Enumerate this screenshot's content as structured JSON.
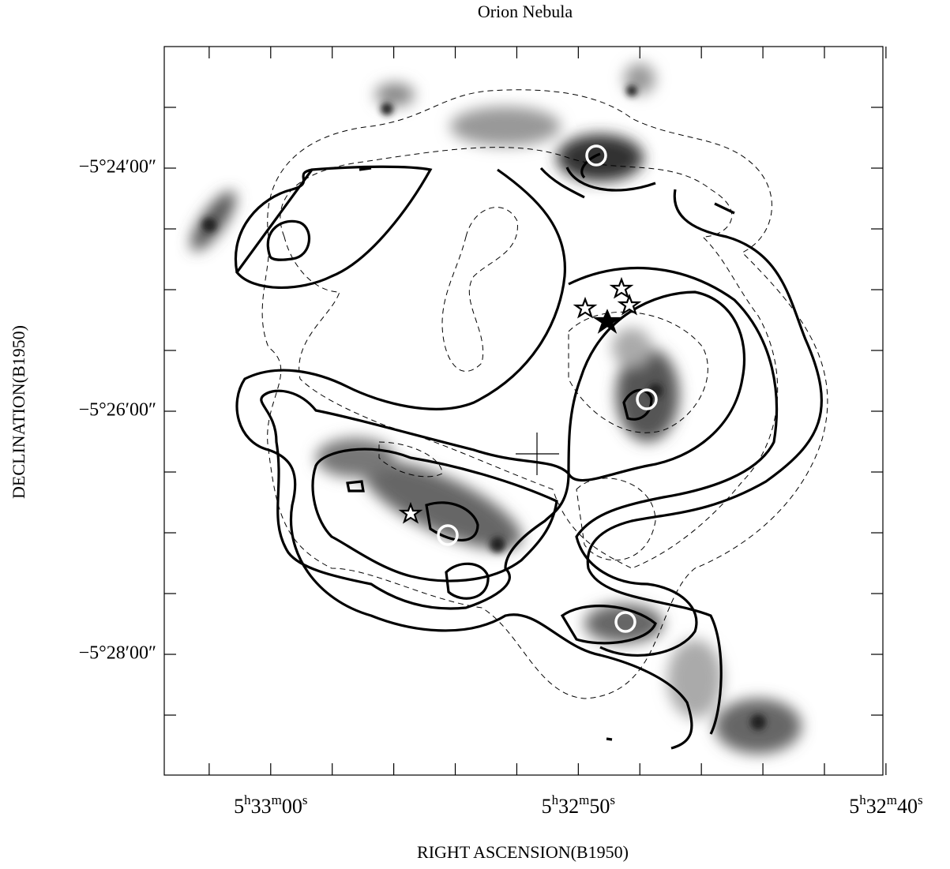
{
  "chart_data": {
    "type": "image-contour",
    "title": "Orion Nebula",
    "xlabel": "RIGHT ASCENSION(B1950)",
    "ylabel": "DECLINATION(B1950)",
    "xlim": [
      19983.46,
      19960.1
    ],
    "xticks": [
      {
        "value": 19980,
        "label": "5h33m00s"
      },
      {
        "value": 19970,
        "label": "5h32m50s"
      },
      {
        "value": 19960,
        "label": "5h32m40s"
      }
    ],
    "xminorticks": [
      19982,
      19978,
      19976,
      19974,
      19972,
      19968,
      19966,
      19964,
      19962
    ],
    "ylim": [
      -19739.6,
      -19380
    ],
    "yticks": [
      {
        "value": -19440,
        "label": "−5°24′00″"
      },
      {
        "value": -19560,
        "label": "−5°26′00″"
      },
      {
        "value": -19680,
        "label": "−5°28′00″"
      }
    ],
    "yminorticks": [
      -19410,
      -19470,
      -19500,
      -19530,
      -19590,
      -19620,
      -19650,
      -19710
    ]
  }
}
